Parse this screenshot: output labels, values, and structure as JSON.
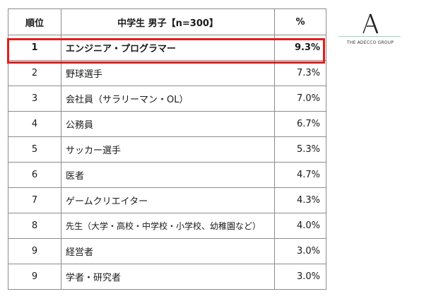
{
  "table": {
    "headers": {
      "rank": "順位",
      "occupation": "中学生 男子【n=300】",
      "percent": "%"
    },
    "rows": [
      {
        "rank": "1",
        "occupation": "エンジニア・プログラマー",
        "percent": "9.3%"
      },
      {
        "rank": "2",
        "occupation": "野球選手",
        "percent": "7.3%"
      },
      {
        "rank": "3",
        "occupation": "会社員（サラリーマン・OL）",
        "percent": "7.0%"
      },
      {
        "rank": "4",
        "occupation": "公務員",
        "percent": "6.7%"
      },
      {
        "rank": "5",
        "occupation": "サッカー選手",
        "percent": "5.3%"
      },
      {
        "rank": "6",
        "occupation": "医者",
        "percent": "4.7%"
      },
      {
        "rank": "7",
        "occupation": "ゲームクリエイター",
        "percent": "4.3%"
      },
      {
        "rank": "8",
        "occupation": "先生（大学・高校・中学校・小学校、幼稚園など）",
        "percent": "4.0%"
      },
      {
        "rank": "9",
        "occupation": "経営者",
        "percent": "3.0%"
      },
      {
        "rank": "9",
        "occupation": "学者・研究者",
        "percent": "3.0%"
      }
    ],
    "highlight_color": "#e01e1e"
  },
  "logo": {
    "brand_text": "THE ADECCO GROUP",
    "accent_color": "#9ad3c8"
  }
}
